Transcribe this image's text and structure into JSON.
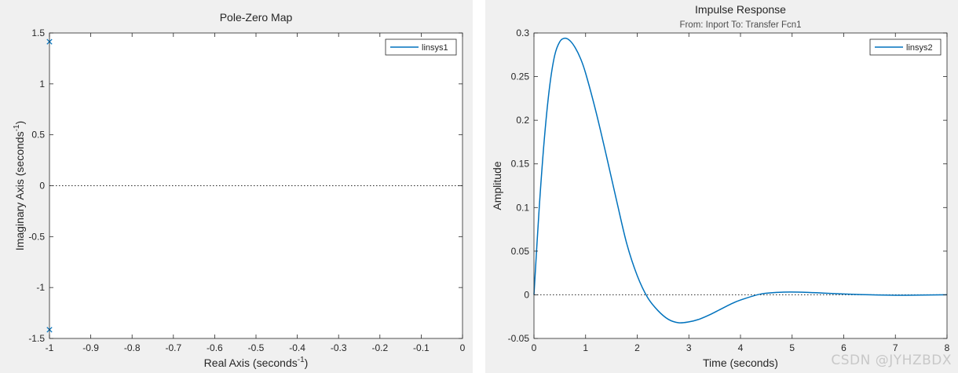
{
  "chart_data": [
    {
      "type": "scatter",
      "title": "Pole-Zero Map",
      "xlabel": "Real Axis (seconds",
      "xlabel_sup": "-1",
      "xlabel_end": ")",
      "ylabel": "Imaginary Axis (seconds",
      "ylabel_sup": "-1",
      "ylabel_end": ")",
      "xlim": [
        -1,
        0
      ],
      "ylim": [
        -1.5,
        1.5
      ],
      "xticks": [
        -1,
        -0.9,
        -0.8,
        -0.7,
        -0.6,
        -0.5,
        -0.4,
        -0.3,
        -0.2,
        -0.1,
        0
      ],
      "xtick_labels": [
        "-1",
        "-0.9",
        "-0.8",
        "-0.7",
        "-0.6",
        "-0.5",
        "-0.4",
        "-0.3",
        "-0.2",
        "-0.1",
        "0"
      ],
      "yticks": [
        -1.5,
        -1,
        -0.5,
        0,
        0.5,
        1,
        1.5
      ],
      "ytick_labels": [
        "-1.5",
        "-1",
        "-0.5",
        "0",
        "0.5",
        "1",
        "1.5"
      ],
      "grid": false,
      "reference_line_y": 0,
      "legend": {
        "entries": [
          "linsys1"
        ],
        "placement": "top-right"
      },
      "series": [
        {
          "name": "linsys1",
          "marker": "x",
          "color": "#0072bd",
          "points": [
            {
              "x": -1,
              "y": 1.414
            },
            {
              "x": -1,
              "y": -1.414
            }
          ]
        }
      ]
    },
    {
      "type": "line",
      "title": "Impulse Response",
      "subtitle": "From: Inport  To: Transfer Fcn1",
      "xlabel": "Time (seconds)",
      "ylabel": "Amplitude",
      "xlim": [
        0,
        8
      ],
      "ylim": [
        -0.05,
        0.3
      ],
      "xticks": [
        0,
        1,
        2,
        3,
        4,
        5,
        6,
        7,
        8
      ],
      "xtick_labels": [
        "0",
        "1",
        "2",
        "3",
        "4",
        "5",
        "6",
        "7",
        "8"
      ],
      "yticks": [
        -0.05,
        0,
        0.05,
        0.1,
        0.15,
        0.2,
        0.25,
        0.3
      ],
      "ytick_labels": [
        "-0.05",
        "0",
        "0.05",
        "0.1",
        "0.15",
        "0.2",
        "0.25",
        "0.3"
      ],
      "grid": false,
      "reference_line_y": 0,
      "legend": {
        "entries": [
          "linsys2"
        ],
        "placement": "top-right"
      },
      "series": [
        {
          "name": "linsys2",
          "color": "#0072bd",
          "x": [
            0,
            0.1,
            0.2,
            0.3,
            0.4,
            0.5,
            0.6,
            0.7,
            0.8,
            0.9,
            1.0,
            1.2,
            1.4,
            1.6,
            1.8,
            2.0,
            2.2,
            2.4,
            2.6,
            2.8,
            3.0,
            3.2,
            3.4,
            3.6,
            3.8,
            4.0,
            4.4,
            4.8,
            5.2,
            5.6,
            6.0,
            6.5,
            7.0,
            7.5,
            8.0
          ],
          "y": [
            0,
            0.098,
            0.178,
            0.237,
            0.274,
            0.29,
            0.294,
            0.291,
            0.283,
            0.271,
            0.254,
            0.21,
            0.16,
            0.108,
            0.058,
            0.022,
            -0.003,
            -0.018,
            -0.028,
            -0.032,
            -0.031,
            -0.028,
            -0.023,
            -0.017,
            -0.011,
            -0.006,
            0.001,
            0.003,
            0.003,
            0.002,
            0.001,
            0.0,
            -0.0005,
            -0.0003,
            0.0
          ]
        }
      ]
    }
  ],
  "watermark": "CSDN @JYHZBDX"
}
